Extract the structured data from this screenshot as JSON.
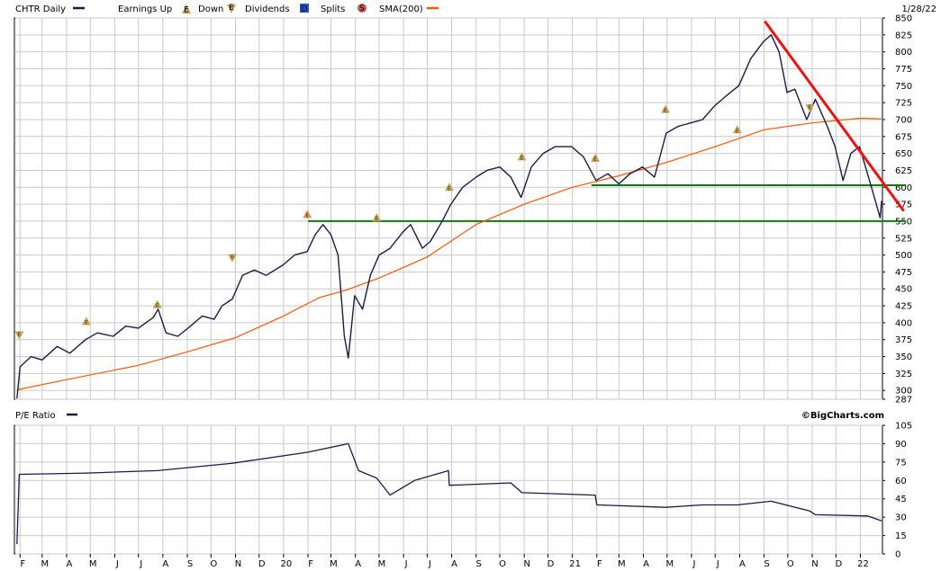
{
  "header": {
    "symbol_label": "CHTR Daily",
    "legend_earnings_up": "Earnings Up",
    "legend_down": "Down",
    "legend_dividends": "Dividends",
    "legend_splits": "Splits",
    "legend_sma": "SMA(200)",
    "marker_e": "E",
    "marker_d": "D",
    "marker_s": "S",
    "date_label": "1/28/22"
  },
  "lower_panel": {
    "title": "P/E Ratio",
    "brand": "©BigCharts.com"
  },
  "colors": {
    "price_line": "#1b1b4b",
    "sma_line": "#ff5500",
    "trend_line": "#ee1111",
    "support_line": "#117711",
    "grid": "#c9c9c9",
    "earnings_marker": "#c8a05a",
    "dividend_marker": "#2255cc",
    "split_marker": "#cc5555"
  },
  "chart_data": [
    {
      "type": "line",
      "title": "CHTR Daily",
      "ylim": [
        287,
        850
      ],
      "y_ticks": [
        287,
        300,
        325,
        350,
        375,
        400,
        425,
        450,
        475,
        500,
        525,
        550,
        575,
        600,
        625,
        650,
        675,
        700,
        725,
        750,
        775,
        800,
        825,
        850
      ],
      "x_ticks": [
        "F",
        "M",
        "A",
        "M",
        "J",
        "J",
        "A",
        "S",
        "O",
        "N",
        "D",
        "20",
        "F",
        "M",
        "A",
        "M",
        "J",
        "J",
        "A",
        "S",
        "O",
        "N",
        "D",
        "21",
        "F",
        "M",
        "A",
        "M",
        "J",
        "J",
        "A",
        "S",
        "O",
        "N",
        "D",
        "22"
      ],
      "grid": true,
      "series": [
        {
          "name": "CHTR",
          "points": [
            [
              "2019-01-28",
              288
            ],
            [
              "2019-02-01",
              335
            ],
            [
              "2019-02-15",
              350
            ],
            [
              "2019-03-01",
              345
            ],
            [
              "2019-03-20",
              365
            ],
            [
              "2019-04-05",
              355
            ],
            [
              "2019-04-25",
              375
            ],
            [
              "2019-05-10",
              385
            ],
            [
              "2019-05-30",
              380
            ],
            [
              "2019-06-15",
              395
            ],
            [
              "2019-07-01",
              392
            ],
            [
              "2019-07-20",
              408
            ],
            [
              "2019-07-26",
              420
            ],
            [
              "2019-08-05",
              385
            ],
            [
              "2019-08-20",
              380
            ],
            [
              "2019-09-05",
              395
            ],
            [
              "2019-09-20",
              410
            ],
            [
              "2019-10-05",
              405
            ],
            [
              "2019-10-15",
              425
            ],
            [
              "2019-10-28",
              435
            ],
            [
              "2019-11-10",
              470
            ],
            [
              "2019-11-25",
              478
            ],
            [
              "2019-12-10",
              470
            ],
            [
              "2019-12-31",
              485
            ],
            [
              "2020-01-15",
              500
            ],
            [
              "2020-01-31",
              505
            ],
            [
              "2020-02-10",
              530
            ],
            [
              "2020-02-20",
              545
            ],
            [
              "2020-03-01",
              530
            ],
            [
              "2020-03-10",
              500
            ],
            [
              "2020-03-18",
              380
            ],
            [
              "2020-03-23",
              348
            ],
            [
              "2020-03-31",
              440
            ],
            [
              "2020-04-10",
              420
            ],
            [
              "2020-04-20",
              470
            ],
            [
              "2020-05-01",
              500
            ],
            [
              "2020-05-15",
              510
            ],
            [
              "2020-06-01",
              535
            ],
            [
              "2020-06-10",
              545
            ],
            [
              "2020-06-25",
              510
            ],
            [
              "2020-07-05",
              520
            ],
            [
              "2020-07-20",
              550
            ],
            [
              "2020-07-31",
              575
            ],
            [
              "2020-08-15",
              600
            ],
            [
              "2020-09-01",
              615
            ],
            [
              "2020-09-15",
              625
            ],
            [
              "2020-10-01",
              630
            ],
            [
              "2020-10-15",
              615
            ],
            [
              "2020-10-28",
              585
            ],
            [
              "2020-11-10",
              630
            ],
            [
              "2020-11-25",
              650
            ],
            [
              "2020-12-10",
              660
            ],
            [
              "2020-12-31",
              660
            ],
            [
              "2021-01-15",
              645
            ],
            [
              "2021-01-31",
              610
            ],
            [
              "2021-02-15",
              620
            ],
            [
              "2021-03-01",
              605
            ],
            [
              "2021-03-15",
              620
            ],
            [
              "2021-03-31",
              630
            ],
            [
              "2021-04-15",
              615
            ],
            [
              "2021-04-30",
              680
            ],
            [
              "2021-05-15",
              690
            ],
            [
              "2021-05-31",
              695
            ],
            [
              "2021-06-15",
              700
            ],
            [
              "2021-06-30",
              720
            ],
            [
              "2021-07-15",
              735
            ],
            [
              "2021-07-31",
              750
            ],
            [
              "2021-08-15",
              790
            ],
            [
              "2021-08-31",
              815
            ],
            [
              "2021-09-10",
              825
            ],
            [
              "2021-09-20",
              800
            ],
            [
              "2021-09-30",
              740
            ],
            [
              "2021-10-10",
              745
            ],
            [
              "2021-10-25",
              700
            ],
            [
              "2021-11-05",
              730
            ],
            [
              "2021-11-20",
              690
            ],
            [
              "2021-11-30",
              660
            ],
            [
              "2021-12-10",
              610
            ],
            [
              "2021-12-20",
              650
            ],
            [
              "2021-12-31",
              660
            ],
            [
              "2022-01-10",
              620
            ],
            [
              "2022-01-20",
              580
            ],
            [
              "2022-01-26",
              555
            ],
            [
              "2022-01-28",
              580
            ]
          ]
        },
        {
          "name": "SMA(200)",
          "points": [
            [
              "2019-01-28",
              301
            ],
            [
              "2019-04-01",
              316
            ],
            [
              "2019-07-01",
              337
            ],
            [
              "2019-09-01",
              357
            ],
            [
              "2019-11-01",
              378
            ],
            [
              "2020-01-01",
              410
            ],
            [
              "2020-02-15",
              437
            ],
            [
              "2020-03-20",
              448
            ],
            [
              "2020-05-01",
              466
            ],
            [
              "2020-07-01",
              497
            ],
            [
              "2020-09-01",
              545
            ],
            [
              "2020-11-01",
              575
            ],
            [
              "2021-01-01",
              600
            ],
            [
              "2021-03-01",
              617
            ],
            [
              "2021-05-01",
              637
            ],
            [
              "2021-07-01",
              660
            ],
            [
              "2021-09-01",
              685
            ],
            [
              "2021-11-01",
              695
            ],
            [
              "2022-01-01",
              702
            ],
            [
              "2022-01-28",
              701
            ]
          ]
        }
      ],
      "annotations": {
        "trend_line": [
          [
            "2021-09-02",
            845
          ],
          [
            "2022-02-25",
            565
          ]
        ],
        "support_lines": [
          {
            "from": "2020-02-01",
            "to": "2022-02-28",
            "y": 550
          },
          {
            "from": "2021-01-25",
            "to": "2022-02-28",
            "y": 603
          }
        ],
        "earnings_up": [
          [
            "2019-04-26",
            402
          ],
          [
            "2019-07-25",
            427
          ],
          [
            "2020-01-31",
            560
          ],
          [
            "2020-04-28",
            555
          ],
          [
            "2020-07-29",
            600
          ],
          [
            "2020-10-29",
            645
          ],
          [
            "2021-01-30",
            643
          ],
          [
            "2021-04-29",
            715
          ],
          [
            "2021-07-29",
            685
          ]
        ],
        "earnings_down": [
          [
            "2019-01-31",
            382
          ],
          [
            "2019-10-28",
            496
          ],
          [
            "2021-10-29",
            717
          ]
        ]
      }
    },
    {
      "type": "line",
      "title": "P/E Ratio",
      "ylim": [
        0,
        105
      ],
      "y_ticks": [
        0,
        15,
        30,
        45,
        60,
        75,
        90,
        105
      ],
      "grid": true,
      "series": [
        {
          "name": "P/E Ratio",
          "points": [
            [
              "2019-01-28",
              8
            ],
            [
              "2019-01-31",
              65
            ],
            [
              "2019-04-26",
              66
            ],
            [
              "2019-07-25",
              68
            ],
            [
              "2019-10-28",
              74
            ],
            [
              "2020-01-31",
              83
            ],
            [
              "2020-03-23",
              90
            ],
            [
              "2020-04-05",
              68
            ],
            [
              "2020-04-28",
              62
            ],
            [
              "2020-05-15",
              48
            ],
            [
              "2020-06-15",
              60
            ],
            [
              "2020-07-28",
              68
            ],
            [
              "2020-07-29",
              56
            ],
            [
              "2020-10-15",
              58
            ],
            [
              "2020-10-29",
              50
            ],
            [
              "2021-01-30",
              48
            ],
            [
              "2021-02-01",
              40
            ],
            [
              "2021-04-29",
              38
            ],
            [
              "2021-06-15",
              40
            ],
            [
              "2021-07-29",
              40
            ],
            [
              "2021-09-10",
              43
            ],
            [
              "2021-10-29",
              35
            ],
            [
              "2021-11-05",
              32
            ],
            [
              "2022-01-10",
              31
            ],
            [
              "2022-01-28",
              27
            ]
          ]
        }
      ]
    }
  ]
}
